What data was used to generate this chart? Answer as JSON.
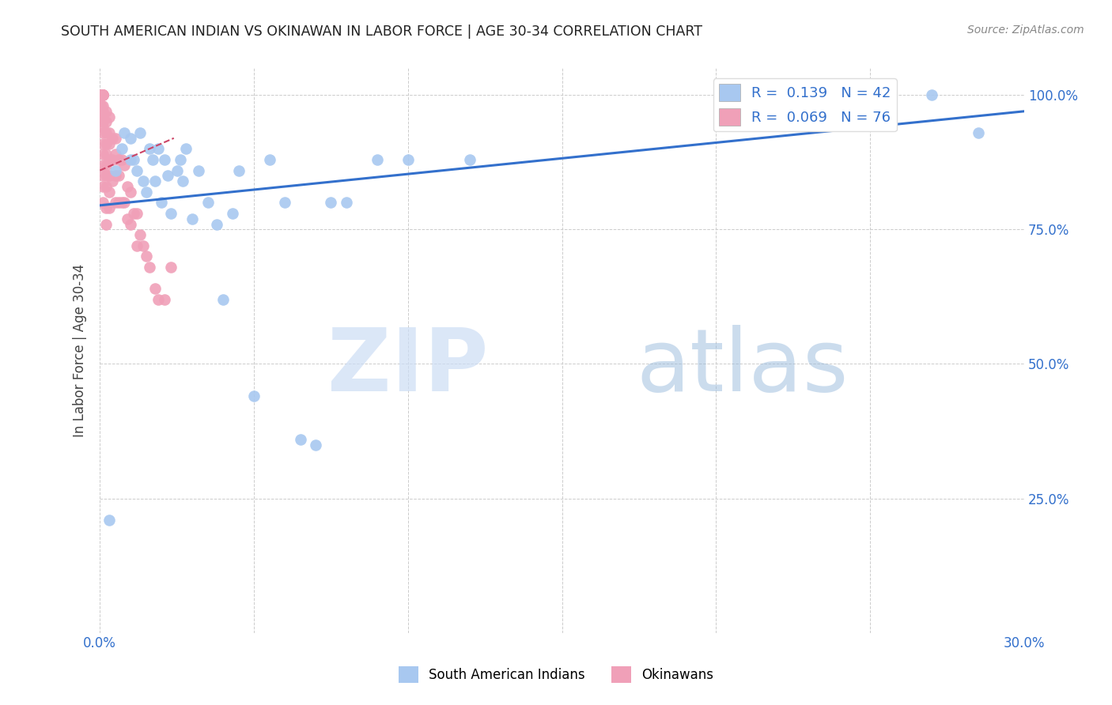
{
  "title": "SOUTH AMERICAN INDIAN VS OKINAWAN IN LABOR FORCE | AGE 30-34 CORRELATION CHART",
  "source": "Source: ZipAtlas.com",
  "ylabel": "In Labor Force | Age 30-34",
  "xlim": [
    0.0,
    0.3
  ],
  "ylim": [
    0.0,
    1.05
  ],
  "blue_color": "#a8c8f0",
  "pink_color": "#f0a0b8",
  "blue_line_color": "#3370cc",
  "pink_line_color": "#cc4466",
  "legend_R_blue": "0.139",
  "legend_N_blue": "42",
  "legend_R_pink": "0.069",
  "legend_N_pink": "76",
  "blue_scatter_x": [
    0.003,
    0.005,
    0.007,
    0.008,
    0.01,
    0.01,
    0.011,
    0.012,
    0.013,
    0.014,
    0.015,
    0.016,
    0.017,
    0.018,
    0.019,
    0.02,
    0.021,
    0.022,
    0.023,
    0.025,
    0.026,
    0.027,
    0.028,
    0.03,
    0.032,
    0.035,
    0.038,
    0.04,
    0.043,
    0.045,
    0.05,
    0.055,
    0.06,
    0.065,
    0.07,
    0.075,
    0.08,
    0.09,
    0.1,
    0.12,
    0.27,
    0.285
  ],
  "blue_scatter_y": [
    0.21,
    0.86,
    0.9,
    0.93,
    0.88,
    0.92,
    0.88,
    0.86,
    0.93,
    0.84,
    0.82,
    0.9,
    0.88,
    0.84,
    0.9,
    0.8,
    0.88,
    0.85,
    0.78,
    0.86,
    0.88,
    0.84,
    0.9,
    0.77,
    0.86,
    0.8,
    0.76,
    0.62,
    0.78,
    0.86,
    0.44,
    0.88,
    0.8,
    0.36,
    0.35,
    0.8,
    0.8,
    0.88,
    0.88,
    0.88,
    1.0,
    0.93
  ],
  "pink_scatter_x": [
    0.0005,
    0.0005,
    0.0005,
    0.0005,
    0.0005,
    0.0005,
    0.0005,
    0.0005,
    0.0005,
    0.0005,
    0.0005,
    0.0005,
    0.001,
    0.001,
    0.001,
    0.001,
    0.001,
    0.001,
    0.001,
    0.001,
    0.001,
    0.001,
    0.001,
    0.001,
    0.001,
    0.001,
    0.001,
    0.001,
    0.001,
    0.001,
    0.002,
    0.002,
    0.002,
    0.002,
    0.002,
    0.002,
    0.002,
    0.002,
    0.002,
    0.002,
    0.003,
    0.003,
    0.003,
    0.003,
    0.003,
    0.003,
    0.003,
    0.004,
    0.004,
    0.004,
    0.005,
    0.005,
    0.005,
    0.005,
    0.006,
    0.006,
    0.006,
    0.007,
    0.007,
    0.008,
    0.008,
    0.009,
    0.009,
    0.01,
    0.01,
    0.011,
    0.012,
    0.012,
    0.013,
    0.014,
    0.015,
    0.016,
    0.018,
    0.019,
    0.021,
    0.023
  ],
  "pink_scatter_y": [
    1.0,
    1.0,
    1.0,
    1.0,
    1.0,
    1.0,
    1.0,
    1.0,
    1.0,
    0.98,
    0.97,
    0.96,
    1.0,
    1.0,
    1.0,
    1.0,
    1.0,
    1.0,
    0.98,
    0.97,
    0.96,
    0.95,
    0.94,
    0.93,
    0.91,
    0.89,
    0.87,
    0.85,
    0.83,
    0.8,
    0.97,
    0.95,
    0.93,
    0.91,
    0.89,
    0.87,
    0.85,
    0.83,
    0.79,
    0.76,
    0.96,
    0.93,
    0.91,
    0.88,
    0.85,
    0.82,
    0.79,
    0.92,
    0.88,
    0.84,
    0.92,
    0.89,
    0.85,
    0.8,
    0.88,
    0.85,
    0.8,
    0.88,
    0.8,
    0.87,
    0.8,
    0.83,
    0.77,
    0.82,
    0.76,
    0.78,
    0.78,
    0.72,
    0.74,
    0.72,
    0.7,
    0.68,
    0.64,
    0.62,
    0.62,
    0.68
  ],
  "blue_line_x0": 0.0,
  "blue_line_y0": 0.795,
  "blue_line_x1": 0.3,
  "blue_line_y1": 0.97,
  "pink_line_x0": 0.0,
  "pink_line_y0": 0.86,
  "pink_line_x1": 0.024,
  "pink_line_y1": 0.92
}
